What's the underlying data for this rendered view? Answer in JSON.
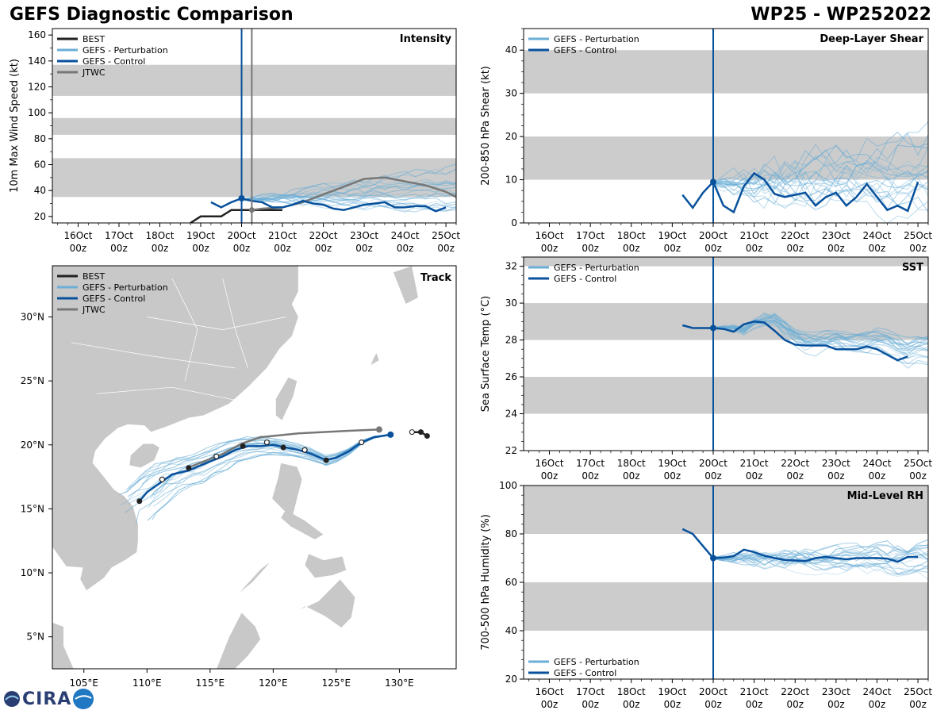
{
  "title_left": "GEFS Diagnostic Comparison",
  "title_right": "WP25 - WP252022",
  "logo_text": "CIRA",
  "colors": {
    "best": "#222222",
    "pert": "#6baed6",
    "control": "#08519c",
    "jtwc": "#777777",
    "band": "#cccccc",
    "land": "#c8c8c8"
  },
  "time_ticks": [
    {
      "t": 1,
      "day": "16Oct",
      "hr": "00z"
    },
    {
      "t": 2,
      "day": "17Oct",
      "hr": "00z"
    },
    {
      "t": 3,
      "day": "18Oct",
      "hr": "00z"
    },
    {
      "t": 4,
      "day": "19Oct",
      "hr": "00z"
    },
    {
      "t": 5,
      "day": "20Oct",
      "hr": "00z"
    },
    {
      "t": 6,
      "day": "21Oct",
      "hr": "00z"
    },
    {
      "t": 7,
      "day": "22Oct",
      "hr": "00z"
    },
    {
      "t": 8,
      "day": "23Oct",
      "hr": "00z"
    },
    {
      "t": 9,
      "day": "24Oct",
      "hr": "00z"
    },
    {
      "t": 10,
      "day": "25Oct",
      "hr": "00z"
    }
  ],
  "chart_data": [
    {
      "type": "line",
      "id": "intensity",
      "label": "Intensity",
      "ylabel": "10m Max Wind Speed (kt)",
      "xlim": [
        0.37,
        10.25
      ],
      "ylim": [
        15,
        165
      ],
      "yticks": [
        20,
        40,
        60,
        80,
        100,
        120,
        140,
        160
      ],
      "bands": [
        [
          35,
          65
        ],
        [
          83,
          96
        ],
        [
          113,
          137
        ]
      ],
      "legend": [
        "BEST",
        "GEFS - Perturbation",
        "GEFS - Control",
        "JTWC"
      ],
      "init_time": 5.0,
      "jtwc_time": 5.25,
      "best": {
        "x": [
          3.75,
          4.0,
          4.25,
          4.5,
          4.75,
          5.0,
          5.25,
          5.5,
          5.75,
          6.0
        ],
        "y": [
          15,
          20,
          20,
          20,
          25,
          25,
          25,
          25,
          25,
          25
        ]
      },
      "control": {
        "x": [
          4.25,
          4.5,
          4.75,
          5.0,
          5.25,
          5.5,
          5.75,
          6.0,
          6.25,
          6.5,
          6.75,
          7.0,
          7.25,
          7.5,
          7.75,
          8.0,
          8.25,
          8.5,
          8.75,
          9.0,
          9.25,
          9.5,
          9.75,
          10.0
        ],
        "y": [
          31,
          27,
          31,
          34,
          32,
          31,
          27,
          27,
          29,
          32,
          30,
          29,
          26,
          25,
          27,
          29,
          30,
          31,
          27,
          27,
          28,
          28,
          24,
          27
        ]
      },
      "jtwc": {
        "x": [
          5.25,
          5.5,
          6.0,
          6.5,
          7.0,
          7.5,
          8.0,
          8.5,
          9.0,
          9.5,
          10.0,
          10.25
        ],
        "y": [
          25,
          26,
          27,
          31,
          37,
          43,
          49,
          50,
          47,
          44,
          39,
          35
        ]
      },
      "control_dot": {
        "x": 5.0,
        "y": 34
      },
      "jtwc_dot": {
        "x": 5.25,
        "y": 25
      },
      "perturbation": {
        "seed": 11,
        "count": 20,
        "x_start": 5.0,
        "x_end": 10.25,
        "step": 0.25,
        "y0": 33,
        "end_min": 24,
        "end_max": 60,
        "noise": 3
      }
    },
    {
      "type": "line",
      "id": "shear",
      "label": "Deep-Layer Shear",
      "ylabel": "200-850 hPa Shear (kt)",
      "xlim": [
        0.37,
        10.25
      ],
      "ylim": [
        0,
        45
      ],
      "yticks": [
        0,
        10,
        20,
        30,
        40
      ],
      "bands": [
        [
          10,
          20
        ],
        [
          30,
          40
        ]
      ],
      "legend": [
        "GEFS - Perturbation",
        "GEFS - Control"
      ],
      "init_time": 5.0,
      "control": {
        "x": [
          4.25,
          4.5,
          4.75,
          5.0,
          5.25,
          5.5,
          5.75,
          6.0,
          6.25,
          6.5,
          6.75,
          7.0,
          7.25,
          7.5,
          7.75,
          8.0,
          8.25,
          8.5,
          8.75,
          9.0,
          9.25,
          9.5,
          9.75,
          10.0
        ],
        "y": [
          6.5,
          3.5,
          7,
          9.5,
          4,
          2.5,
          8.5,
          11.5,
          10,
          6.7,
          6,
          6.5,
          7,
          4,
          6,
          7,
          4,
          6,
          9,
          6,
          3,
          4,
          2.8,
          9.5
        ]
      },
      "control_dot": {
        "x": 5.0,
        "y": 9.5
      },
      "perturbation": {
        "seed": 23,
        "count": 20,
        "x_start": 5.0,
        "x_end": 10.25,
        "step": 0.25,
        "y0": 9,
        "end_min": 3,
        "end_max": 22,
        "noise": 3.5
      }
    },
    {
      "type": "map",
      "id": "track",
      "label": "Track",
      "lon_range": [
        102.5,
        134.5
      ],
      "lat_range": [
        2.5,
        34
      ],
      "lon_ticks": [
        {
          "v": 105,
          "t": "105°E"
        },
        {
          "v": 110,
          "t": "110°E"
        },
        {
          "v": 115,
          "t": "115°E"
        },
        {
          "v": 120,
          "t": "120°E"
        },
        {
          "v": 125,
          "t": "125°E"
        },
        {
          "v": 130,
          "t": "130°E"
        }
      ],
      "lat_ticks": [
        {
          "v": 5,
          "t": "5°N"
        },
        {
          "v": 10,
          "t": "10°N"
        },
        {
          "v": 15,
          "t": "15°N"
        },
        {
          "v": 20,
          "t": "20°N"
        },
        {
          "v": 25,
          "t": "25°N"
        },
        {
          "v": 30,
          "t": "30°N"
        }
      ],
      "legend": [
        "BEST",
        "GEFS - Perturbation",
        "GEFS - Control",
        "JTWC"
      ],
      "best": {
        "lon": [
          132.2,
          131.7,
          131.0
        ],
        "lat": [
          20.7,
          21.0,
          21.0
        ]
      },
      "jtwc": {
        "lon": [
          128.4,
          126.0,
          122.0,
          119.0,
          117.5,
          116.0,
          114.5,
          113.2
        ],
        "lat": [
          21.2,
          21.1,
          20.9,
          20.6,
          20.1,
          19.3,
          18.7,
          18.2
        ]
      },
      "control": {
        "lon": [
          129.3,
          128.0,
          127.0,
          126.0,
          125.0,
          124.2,
          123.0,
          122.0,
          121.0,
          120.0,
          119.0,
          118.0,
          117.0,
          116.0,
          115.0,
          114.0,
          113.3,
          112.0,
          111.0,
          110.0,
          109.4
        ],
        "lat": [
          20.8,
          20.6,
          20.2,
          19.5,
          19.0,
          18.8,
          19.3,
          19.6,
          19.8,
          20.0,
          19.9,
          19.9,
          19.6,
          19.1,
          18.7,
          18.3,
          18.0,
          17.7,
          17.0,
          16.3,
          15.6
        ]
      },
      "control_dot_filled": [
        {
          "lon": 129.3,
          "lat": 20.8
        },
        {
          "lon": 124.2,
          "lat": 18.8
        },
        {
          "lon": 120.8,
          "lat": 19.8
        },
        {
          "lon": 117.6,
          "lat": 19.9
        },
        {
          "lon": 113.3,
          "lat": 18.2
        },
        {
          "lon": 109.4,
          "lat": 15.6
        }
      ],
      "control_dot_open": [
        {
          "lon": 127.0,
          "lat": 20.2
        },
        {
          "lon": 122.5,
          "lat": 19.6
        },
        {
          "lon": 119.5,
          "lat": 20.2
        },
        {
          "lon": 115.5,
          "lat": 19.1
        },
        {
          "lon": 111.2,
          "lat": 17.3
        }
      ],
      "best_dots": [
        {
          "lon": 132.2,
          "lat": 20.7
        },
        {
          "lon": 131.7,
          "lat": 21.0
        }
      ],
      "best_open": [
        {
          "lon": 131.0,
          "lat": 21.0
        }
      ],
      "jtwc_dot": {
        "lon": 128.4,
        "lat": 21.2
      },
      "perturbation": {
        "seed": 37,
        "count": 20
      }
    },
    {
      "type": "line",
      "id": "sst",
      "label": "SST",
      "ylabel": "Sea Surface Temp (°C)",
      "xlim": [
        0.37,
        10.25
      ],
      "ylim": [
        22,
        32.5
      ],
      "yticks": [
        22,
        24,
        26,
        28,
        30,
        32
      ],
      "bands": [
        [
          24,
          26
        ],
        [
          28,
          30
        ],
        [
          32,
          32.5
        ]
      ],
      "legend": [
        "GEFS - Perturbation",
        "GEFS - Control"
      ],
      "init_time": 5.0,
      "control": {
        "x": [
          4.25,
          4.5,
          4.75,
          5.0,
          5.25,
          5.5,
          5.75,
          6.0,
          6.25,
          6.5,
          6.75,
          7.0,
          7.25,
          7.5,
          7.75,
          8.0,
          8.25,
          8.5,
          8.75,
          9.0,
          9.25,
          9.5,
          9.75
        ],
        "y": [
          28.8,
          28.65,
          28.65,
          28.65,
          28.6,
          28.45,
          28.85,
          29.0,
          28.95,
          28.5,
          28.0,
          27.75,
          27.7,
          27.7,
          27.7,
          27.5,
          27.5,
          27.5,
          27.65,
          27.5,
          27.2,
          26.9,
          27.1
        ]
      },
      "control_dot": {
        "x": 5.0,
        "y": 28.65
      },
      "perturbation": {
        "seed": 51,
        "count": 20,
        "x_start": 5.0,
        "x_end": 10.25,
        "step": 0.25,
        "y0": 28.7,
        "end_min": 27.0,
        "end_max": 28.6,
        "noise": 0.25,
        "profile": "sst"
      }
    },
    {
      "type": "line",
      "id": "rh",
      "label": "Mid-Level RH",
      "ylabel": "700-500 hPa Humidity (%)",
      "xlim": [
        0.37,
        10.25
      ],
      "ylim": [
        20,
        100
      ],
      "yticks": [
        20,
        40,
        60,
        80,
        100
      ],
      "bands": [
        [
          40,
          60
        ],
        [
          80,
          100
        ]
      ],
      "legend": [
        "GEFS - Perturbation",
        "GEFS - Control"
      ],
      "init_time": 5.0,
      "control": {
        "x": [
          4.25,
          4.5,
          4.75,
          5.0,
          5.25,
          5.5,
          5.75,
          6.0,
          6.25,
          6.5,
          6.75,
          7.0,
          7.25,
          7.5,
          7.75,
          8.0,
          8.25,
          8.5,
          8.75,
          9.0,
          9.25,
          9.5,
          9.75,
          10.0
        ],
        "y": [
          82,
          80,
          75,
          70,
          70.2,
          70.8,
          73.5,
          72.5,
          71,
          70,
          69.2,
          69,
          68.8,
          70,
          70.5,
          70,
          69.5,
          70,
          70,
          70,
          69.8,
          68.5,
          70.5,
          70.5
        ]
      },
      "control_dot": {
        "x": 5.0,
        "y": 70
      },
      "perturbation": {
        "seed": 67,
        "count": 20,
        "x_start": 5.0,
        "x_end": 10.25,
        "step": 0.25,
        "y0": 70,
        "end_min": 62,
        "end_max": 76,
        "noise": 2.5
      }
    }
  ]
}
